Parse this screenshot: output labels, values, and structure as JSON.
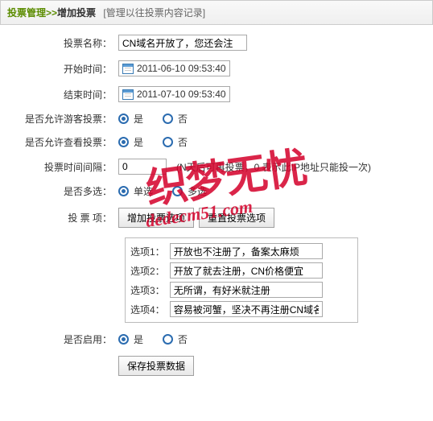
{
  "header": {
    "crumb": "投票管理",
    "sep": ">>",
    "title": "增加投票",
    "note": "[管理以往投票内容记录]"
  },
  "labels": {
    "name": "投票名称：",
    "start": "开始时间：",
    "end": "结束时间：",
    "guest": "是否允许游客投票：",
    "view": "是否允许查看投票：",
    "interval": "投票时间间隔：",
    "multi": "是否多选：",
    "options": "投 票 项：",
    "enable": "是否启用："
  },
  "values": {
    "name": "CN域名开放了，您还会注",
    "start": "2011-06-10 09:53:40",
    "end": "2011-07-10 09:53:40",
    "interval": "0",
    "interval_hint": "(N天后可再投票，0 表示此IP地址只能投一次)"
  },
  "radio": {
    "yes": "是",
    "no": "否",
    "single": "单选",
    "multi": "多选"
  },
  "buttons": {
    "add_option": "增加投票选项",
    "reset_option": "重置投票选项",
    "save": "保存投票数据"
  },
  "options": [
    {
      "label": "选项1：",
      "value": "开放也不注册了，备案太麻烦"
    },
    {
      "label": "选项2：",
      "value": "开放了就去注册，CN价格便宜"
    },
    {
      "label": "选项3：",
      "value": "无所谓，有好米就注册"
    },
    {
      "label": "选项4：",
      "value": "容易被河蟹，坚决不再注册CN域名"
    }
  ],
  "watermark": {
    "cn": "织梦无忧",
    "en": "dedecm51.com"
  }
}
